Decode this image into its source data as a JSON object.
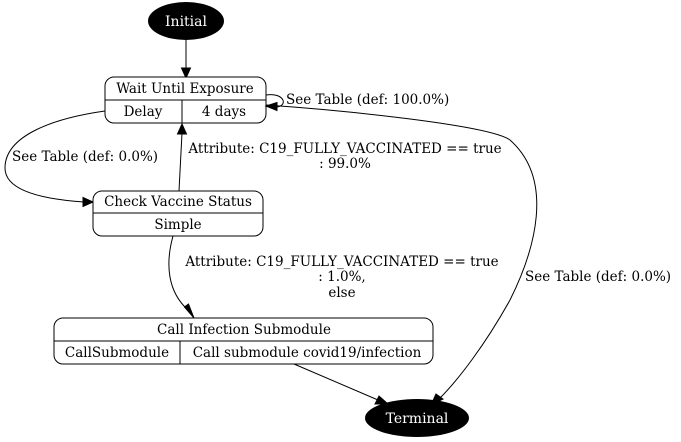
{
  "nodes": {
    "initial": {
      "label": "Initial"
    },
    "wait_until_exposure": {
      "title": "Wait Until Exposure",
      "type": "Delay",
      "detail": "4 days"
    },
    "check_vaccine_status": {
      "title": "Check Vaccine Status",
      "type": "Simple"
    },
    "call_infection_submodule": {
      "title": "Call Infection Submodule",
      "type": "CallSubmodule",
      "detail": "Call submodule covid19/infection"
    },
    "terminal": {
      "label": "Terminal"
    }
  },
  "edges": {
    "wait_self": {
      "label": "See Table (def: 100.0%)"
    },
    "wait_to_check": {
      "label": "See Table (def: 0.0%)"
    },
    "check_to_wait": {
      "label_line1": "Attribute: C19_FULLY_VACCINATED == true",
      "label_line2": ": 99.0%"
    },
    "check_to_call": {
      "label_line1": "Attribute: C19_FULLY_VACCINATED == true",
      "label_line2": ": 1.0%,",
      "label_line3": "else"
    },
    "wait_to_terminal": {
      "label": "See Table (def: 0.0%)"
    }
  },
  "colors": {
    "terminal_fill": "#000000",
    "node_fill": "#ffffff",
    "text_on_dark": "#ffffff"
  }
}
